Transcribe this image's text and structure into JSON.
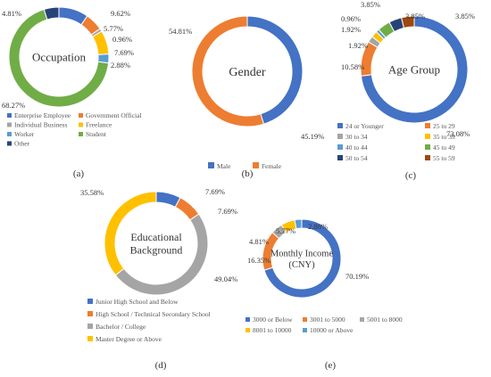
{
  "chart_data": [
    {
      "type": "donut",
      "center_label": [
        "Occupation"
      ],
      "caption": "(a)",
      "categories": [
        "Enterprise Employee",
        "Government Official",
        "Individual Business",
        "Freelance",
        "Worker",
        "Student",
        "Other"
      ],
      "values": [
        9.62,
        5.77,
        0.96,
        7.69,
        2.88,
        68.27,
        4.81
      ],
      "labels": [
        "9.62%",
        "5.77%",
        "0.96%",
        "7.69%",
        "2.88%",
        "68.27%",
        "4.81%"
      ],
      "colors": [
        "#4472c4",
        "#ed7d31",
        "#a5a5a5",
        "#ffc000",
        "#5b9bd5",
        "#70ad47",
        "#264478"
      ],
      "legend_position": "bottom"
    },
    {
      "type": "donut",
      "center_label": [
        "Gender"
      ],
      "caption": "(b)",
      "categories": [
        "Male",
        "Female"
      ],
      "values": [
        45.19,
        54.81
      ],
      "labels": [
        "45.19%",
        "54.81%"
      ],
      "colors": [
        "#4472c4",
        "#ed7d31"
      ],
      "legend_position": "bottom"
    },
    {
      "type": "donut",
      "center_label": [
        "Age Group"
      ],
      "caption": "(c)",
      "categories": [
        "24 or Younger",
        "25 to 29",
        "30 to 34",
        "35 to 39",
        "40 to 44",
        "45 to 49",
        "50 to 54",
        "55 to 59"
      ],
      "values": [
        73.08,
        10.58,
        1.92,
        1.92,
        0.96,
        3.85,
        3.85,
        3.85
      ],
      "labels": [
        "73.08%",
        "10.58%",
        "1.92%",
        "1.92%",
        "0.96%",
        "3.85%",
        "3.85%",
        "3.85%"
      ],
      "colors": [
        "#4472c4",
        "#ed7d31",
        "#a5a5a5",
        "#ffc000",
        "#5b9bd5",
        "#70ad47",
        "#264478",
        "#9e480e"
      ],
      "legend_position": "bottom"
    },
    {
      "type": "donut",
      "center_label": [
        "Educational",
        "Background"
      ],
      "caption": "(d)",
      "categories": [
        "Junior High School and Below",
        "High School / Technical Secondary School",
        "Bachelor / College",
        "Master Degree or Above"
      ],
      "values": [
        7.69,
        7.69,
        49.04,
        35.58
      ],
      "labels": [
        "7.69%",
        "7.69%",
        "49.04%",
        "35.58%"
      ],
      "colors": [
        "#4472c4",
        "#ed7d31",
        "#a5a5a5",
        "#ffc000"
      ],
      "legend_position": "bottom"
    },
    {
      "type": "donut",
      "center_label": [
        "Monthly Income",
        "(CNY)"
      ],
      "caption": "(e)",
      "categories": [
        "3000 or Below",
        "3001 to 5000",
        "5001 to 8000",
        "8001 to 10000",
        "10000 or Above"
      ],
      "values": [
        70.19,
        16.35,
        4.81,
        5.77,
        2.88
      ],
      "labels": [
        "70.19%",
        "16.35%",
        "4.81%",
        "5.77%",
        "2.88%"
      ],
      "colors": [
        "#4472c4",
        "#ed7d31",
        "#a5a5a5",
        "#ffc000",
        "#5b9bd5"
      ],
      "legend_position": "bottom"
    }
  ]
}
